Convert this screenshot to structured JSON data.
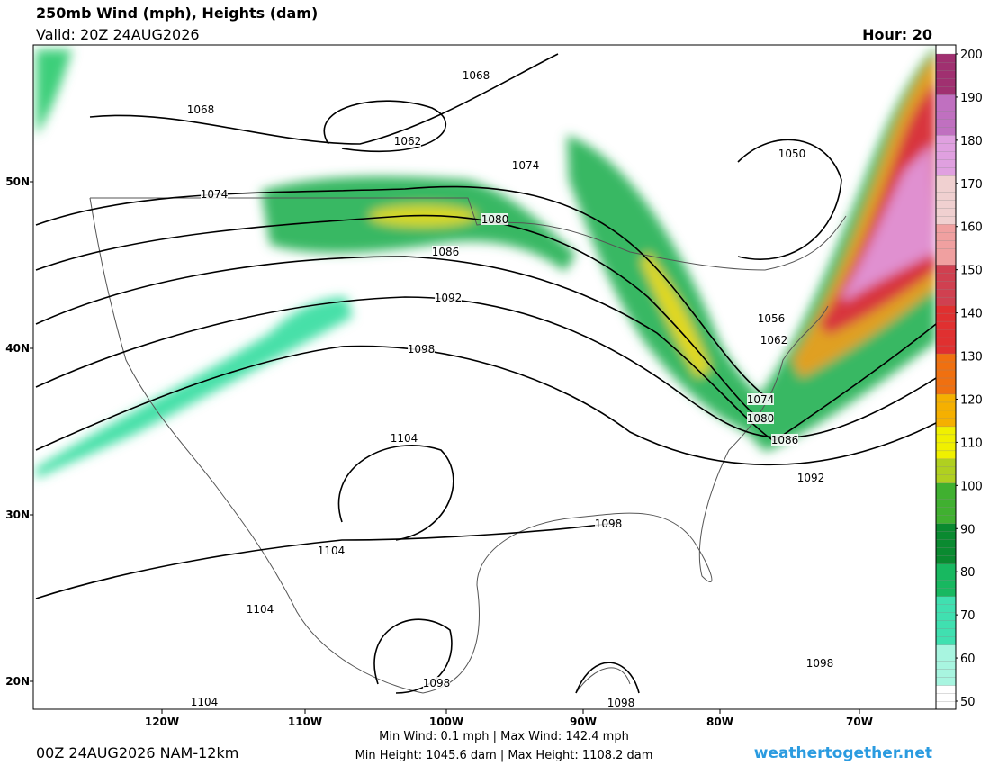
{
  "header": {
    "title": "250mb Wind (mph), Heights (dam)",
    "valid": "Valid: 20Z 24AUG2026",
    "hour": "Hour: 20"
  },
  "colorbar": {
    "ticks": [
      50,
      60,
      70,
      80,
      90,
      100,
      110,
      120,
      130,
      140,
      150,
      160,
      170,
      180,
      190,
      200
    ]
  },
  "latitude_labels": [
    "50N",
    "40N",
    "30N",
    "20N"
  ],
  "longitude_labels": [
    "120W",
    "110W",
    "100W",
    "90W",
    "80W",
    "70W"
  ],
  "contour_labels": [
    "1068",
    "1068",
    "1062",
    "1074",
    "1074",
    "1080",
    "1086",
    "1092",
    "1098",
    "1104",
    "1104",
    "1104",
    "1104",
    "1098",
    "1098",
    "1098",
    "1098",
    "1092",
    "1086",
    "1080",
    "1074",
    "1062",
    "1056",
    "1050"
  ],
  "footer": {
    "run": "00Z 24AUG2026 NAM-12km",
    "wind": "Min Wind:   0.1 mph | Max Wind: 142.4 mph",
    "height": "Min Height: 1045.6 dam | Max Height: 1108.2 dam",
    "site": "weathertogether.net"
  }
}
